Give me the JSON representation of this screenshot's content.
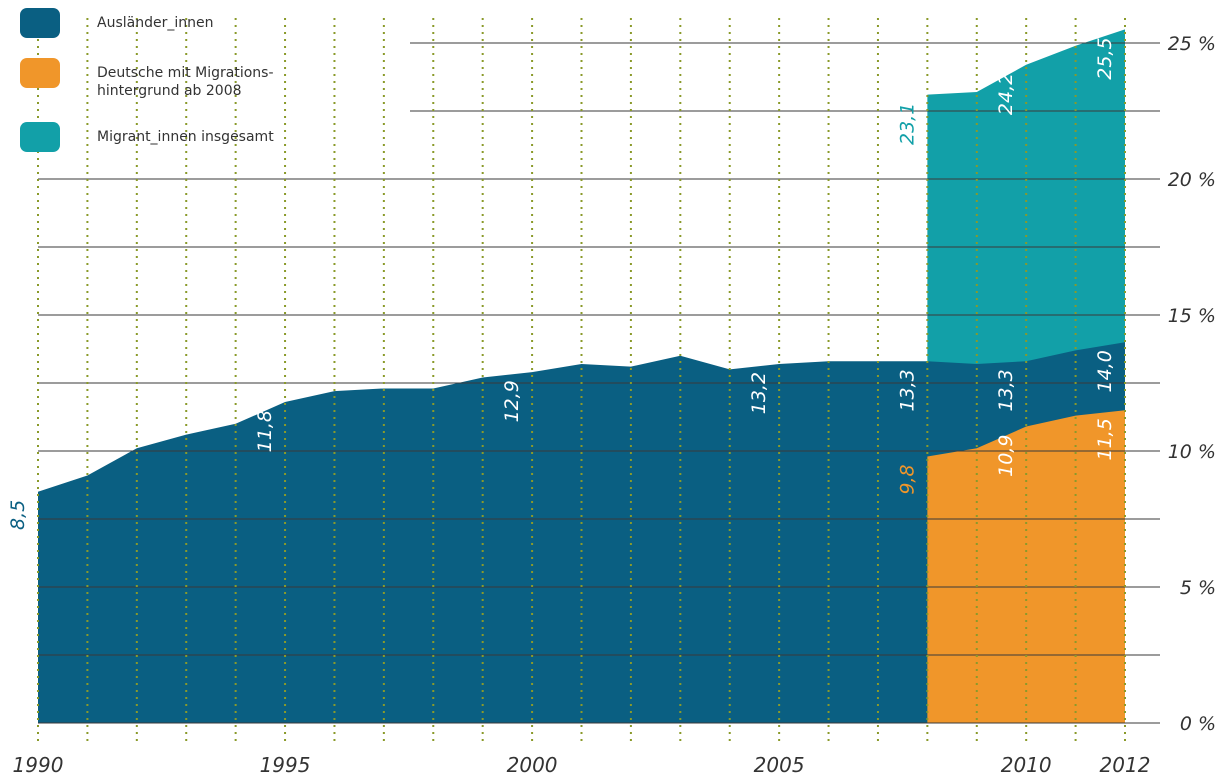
{
  "chart_data": {
    "type": "area",
    "series": [
      {
        "name": "Migrant_innen insgesamt",
        "color": "#12a0a8",
        "x": [
          2008,
          2009,
          2010,
          2011,
          2012
        ],
        "values": [
          23.1,
          23.2,
          24.2,
          24.9,
          25.5
        ],
        "value_labels": [
          "23,1",
          null,
          "24,2",
          null,
          "25,5"
        ]
      },
      {
        "name": "Ausländer_innen",
        "color": "#0a5f82",
        "x": [
          1990,
          1991,
          1992,
          1993,
          1994,
          1995,
          1996,
          1997,
          1998,
          1999,
          2000,
          2001,
          2002,
          2003,
          2004,
          2005,
          2006,
          2007,
          2008,
          2009,
          2010,
          2011,
          2012
        ],
        "values": [
          8.5,
          9.1,
          10.1,
          10.6,
          11.0,
          11.8,
          12.2,
          12.3,
          12.3,
          12.7,
          12.9,
          13.2,
          13.1,
          13.5,
          13.0,
          13.2,
          13.3,
          13.3,
          13.3,
          13.2,
          13.3,
          13.7,
          14.0
        ],
        "value_labels": [
          "8,5",
          null,
          null,
          null,
          null,
          "11,8",
          null,
          null,
          null,
          null,
          "12,9",
          null,
          null,
          null,
          null,
          "13,2",
          null,
          null,
          "13,3",
          null,
          "13,3",
          null,
          "14,0"
        ]
      },
      {
        "name": "Deutsche mit Migrations-\nhintergrund ab 2008",
        "color": "#f0962a",
        "x": [
          2008,
          2009,
          2010,
          2011,
          2012
        ],
        "values": [
          9.8,
          10.1,
          10.9,
          11.3,
          11.5
        ],
        "value_labels": [
          "9,8",
          null,
          "10,9",
          null,
          "11,5"
        ]
      }
    ],
    "legend_order": [
      1,
      2,
      0
    ],
    "xlim": [
      1990,
      2012
    ],
    "xticks": [
      1990,
      1995,
      2000,
      2005,
      2010,
      2012
    ],
    "minor_xticks": [
      1990,
      1991,
      1992,
      1993,
      1994,
      1995,
      1996,
      1997,
      1998,
      1999,
      2000,
      2001,
      2002,
      2003,
      2004,
      2005,
      2006,
      2007,
      2008,
      2009,
      2010,
      2011,
      2012
    ],
    "ylim": [
      0,
      25
    ],
    "yticks": [
      {
        "value": 0,
        "label": "0 %"
      },
      {
        "value": 5,
        "label": "5 %"
      },
      {
        "value": 10,
        "label": "10 %"
      },
      {
        "value": 15,
        "label": "15 %"
      },
      {
        "value": 20,
        "label": "20 %"
      },
      {
        "value": 25,
        "label": "25 %"
      }
    ],
    "minor_yticks": [
      2.5,
      7.5,
      12.5,
      17.5,
      22.5
    ],
    "grid": true
  }
}
